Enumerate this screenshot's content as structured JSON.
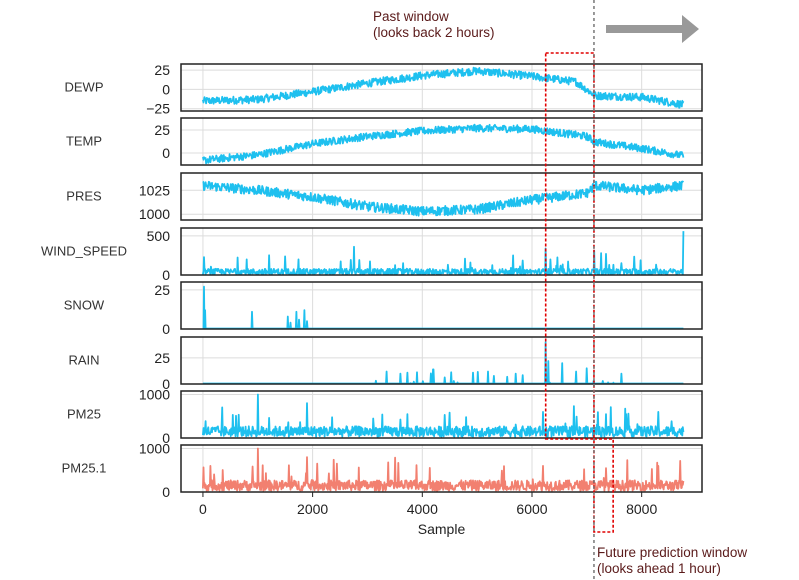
{
  "chart_data": {
    "type": "line",
    "xlabel": "Sample",
    "x_ticks": [
      0,
      2000,
      4000,
      6000,
      8000
    ],
    "x_range": [
      -400,
      9100
    ],
    "grid": true,
    "colors": {
      "feature": "#1ec0ef",
      "target": "#f28070",
      "window": "#e00000",
      "divider": "#777777",
      "arrow": "#999999"
    },
    "annotations": {
      "past_window": [
        "Past window",
        "(looks back 2 hours)"
      ],
      "future_window": [
        "Future prediction window",
        "(looks ahead 1 hour)"
      ]
    },
    "past_window_range": [
      6250,
      7130
    ],
    "future_window_range": [
      7130,
      7480
    ],
    "divider_x": 7130,
    "panels": [
      {
        "name": "DEWP",
        "color_key": "feature",
        "ylim": [
          -28,
          33
        ],
        "yticks": [
          25,
          0,
          -25
        ],
        "ytick_labels": [
          "25",
          "0",
          "−25"
        ],
        "profile": [
          [
            0,
            -15
          ],
          [
            1000,
            -13
          ],
          [
            2000,
            -3
          ],
          [
            3000,
            8
          ],
          [
            4000,
            18
          ],
          [
            5000,
            24
          ],
          [
            6000,
            17
          ],
          [
            6800,
            10
          ],
          [
            7150,
            -8
          ],
          [
            8000,
            -10
          ],
          [
            8760,
            -20
          ]
        ],
        "noise": 5,
        "spikes": 0
      },
      {
        "name": "TEMP",
        "color_key": "feature",
        "ylim": [
          -13,
          38
        ],
        "yticks": [
          25,
          0
        ],
        "ytick_labels": [
          "25",
          "0"
        ],
        "profile": [
          [
            0,
            -8
          ],
          [
            1000,
            -2
          ],
          [
            2000,
            10
          ],
          [
            3000,
            18
          ],
          [
            4000,
            24
          ],
          [
            5000,
            27
          ],
          [
            6000,
            26
          ],
          [
            7000,
            18
          ],
          [
            7150,
            12
          ],
          [
            8000,
            5
          ],
          [
            8760,
            -3
          ]
        ],
        "noise": 4,
        "spikes": 0
      },
      {
        "name": "PRES",
        "color_key": "feature",
        "ylim": [
          994,
          1043
        ],
        "yticks": [
          1025,
          1000
        ],
        "ytick_labels": [
          "1025",
          "1000"
        ],
        "profile": [
          [
            0,
            1030
          ],
          [
            1000,
            1025
          ],
          [
            2000,
            1018
          ],
          [
            3000,
            1008
          ],
          [
            4000,
            1003
          ],
          [
            5000,
            1005
          ],
          [
            6000,
            1015
          ],
          [
            7000,
            1022
          ],
          [
            7150,
            1030
          ],
          [
            8000,
            1025
          ],
          [
            8760,
            1030
          ]
        ],
        "noise": 5,
        "spikes": 0
      },
      {
        "name": "WIND_SPEED",
        "color_key": "feature",
        "ylim": [
          0,
          600
        ],
        "yticks": [
          500,
          0
        ],
        "ytick_labels": [
          "500",
          "0"
        ],
        "profile": [
          [
            0,
            40
          ],
          [
            8760,
            40
          ]
        ],
        "noise": 40,
        "spikes": 0.05,
        "spike_max": 250,
        "peaks": [
          [
            2750,
            360
          ],
          [
            6250,
            340
          ],
          [
            7130,
            310
          ],
          [
            8760,
            560
          ]
        ]
      },
      {
        "name": "SNOW",
        "color_key": "feature",
        "ylim": [
          0,
          30
        ],
        "yticks": [
          25,
          0
        ],
        "ytick_labels": [
          "25",
          "0"
        ],
        "profile": [
          [
            0,
            0
          ],
          [
            8760,
            0
          ]
        ],
        "noise": 0,
        "spikes": 0,
        "peaks": [
          [
            20,
            27
          ],
          [
            40,
            12
          ],
          [
            900,
            11
          ],
          [
            1550,
            8
          ],
          [
            1600,
            4
          ],
          [
            1700,
            11
          ],
          [
            1750,
            6
          ],
          [
            1850,
            12
          ],
          [
            1900,
            5
          ]
        ]
      },
      {
        "name": "RAIN",
        "color_key": "feature",
        "ylim": [
          0,
          45
        ],
        "yticks": [
          25,
          0
        ],
        "ytick_labels": [
          "25",
          "0"
        ],
        "profile": [
          [
            0,
            0
          ],
          [
            8760,
            0
          ]
        ],
        "noise": 0,
        "spikes": 0.03,
        "spike_max": 12,
        "spike_start": 3000,
        "spike_end": 8000,
        "peaks": [
          [
            6250,
            40
          ],
          [
            6300,
            22
          ],
          [
            6550,
            20
          ],
          [
            6800,
            12
          ],
          [
            7000,
            15
          ],
          [
            3350,
            12
          ],
          [
            3600,
            10
          ],
          [
            4200,
            14
          ],
          [
            5200,
            12
          ],
          [
            5700,
            10
          ]
        ]
      },
      {
        "name": "PM25",
        "color_key": "feature",
        "ylim": [
          0,
          1080
        ],
        "yticks": [
          1000,
          0
        ],
        "ytick_labels": [
          "1000",
          "0"
        ],
        "profile": [
          [
            0,
            150
          ],
          [
            8760,
            150
          ]
        ],
        "noise": 120,
        "spikes": 0.04,
        "spike_max": 550,
        "peaks": [
          [
            1000,
            1000
          ],
          [
            1900,
            800
          ],
          [
            6200,
            600
          ],
          [
            7350,
            550
          ],
          [
            8300,
            600
          ]
        ]
      },
      {
        "name": "PM25.1",
        "color_key": "target",
        "ylim": [
          0,
          1080
        ],
        "yticks": [
          1000,
          0
        ],
        "ytick_labels": [
          "1000",
          "0"
        ],
        "profile": [
          [
            0,
            150
          ],
          [
            8760,
            150
          ]
        ],
        "noise": 120,
        "spikes": 0.04,
        "spike_max": 550,
        "peaks": [
          [
            1000,
            1000
          ],
          [
            1900,
            800
          ],
          [
            6200,
            600
          ],
          [
            7350,
            550
          ],
          [
            8300,
            600
          ]
        ]
      }
    ]
  }
}
